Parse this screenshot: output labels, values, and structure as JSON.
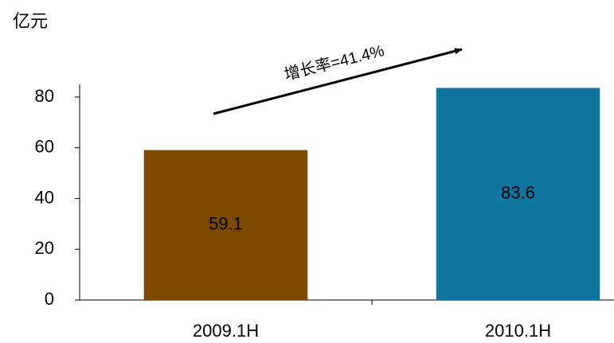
{
  "chart_data": {
    "type": "bar",
    "unit_label": "亿元",
    "annotation": "增长率=41.4%",
    "categories": [
      "2009.1H",
      "2010.1H"
    ],
    "values": [
      59.1,
      83.6
    ],
    "colors": [
      "#7b4a00",
      "#11769f"
    ],
    "ylim": [
      0,
      85
    ],
    "yticks": [
      0,
      20,
      40,
      60,
      80
    ],
    "grid": false
  }
}
